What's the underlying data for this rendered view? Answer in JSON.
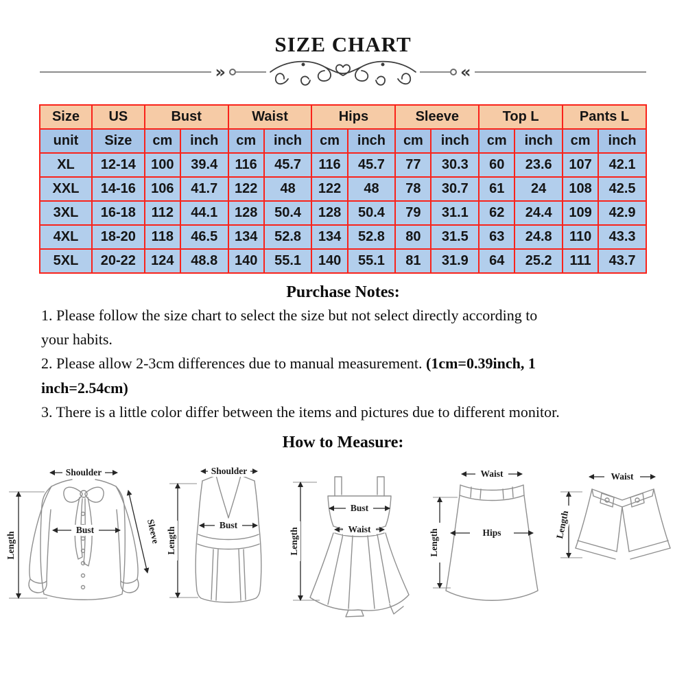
{
  "page": {
    "title": "SIZE CHART",
    "notes_heading": "Purchase Notes:",
    "measure_heading": "How to Measure:"
  },
  "divider": {
    "left_chevrons": "»",
    "right_chevrons": "«"
  },
  "size_table": {
    "border_color": "#f9221a",
    "header_bg": "#f6cba6",
    "unit_row_bg": "#a7c5e8",
    "data_row_bg": "#b2ceec",
    "header_row1": [
      {
        "label": "Size",
        "span": 1
      },
      {
        "label": "US",
        "span": 1
      },
      {
        "label": "Bust",
        "span": 2
      },
      {
        "label": "Waist",
        "span": 2
      },
      {
        "label": "Hips",
        "span": 2
      },
      {
        "label": "Sleeve",
        "span": 2
      },
      {
        "label": "Top L",
        "span": 2
      },
      {
        "label": "Pants L",
        "span": 2
      }
    ],
    "header_row2": [
      "unit",
      "Size",
      "cm",
      "inch",
      "cm",
      "inch",
      "cm",
      "inch",
      "cm",
      "inch",
      "cm",
      "inch",
      "cm",
      "inch"
    ],
    "rows": [
      [
        "XL",
        "12-14",
        "100",
        "39.4",
        "116",
        "45.7",
        "116",
        "45.7",
        "77",
        "30.3",
        "60",
        "23.6",
        "107",
        "42.1"
      ],
      [
        "XXL",
        "14-16",
        "106",
        "41.7",
        "122",
        "48",
        "122",
        "48",
        "78",
        "30.7",
        "61",
        "24",
        "108",
        "42.5"
      ],
      [
        "3XL",
        "16-18",
        "112",
        "44.1",
        "128",
        "50.4",
        "128",
        "50.4",
        "79",
        "31.1",
        "62",
        "24.4",
        "109",
        "42.9"
      ],
      [
        "4XL",
        "18-20",
        "118",
        "46.5",
        "134",
        "52.8",
        "134",
        "52.8",
        "80",
        "31.5",
        "63",
        "24.8",
        "110",
        "43.3"
      ],
      [
        "5XL",
        "20-22",
        "124",
        "48.8",
        "140",
        "55.1",
        "140",
        "55.1",
        "81",
        "31.9",
        "64",
        "25.2",
        "111",
        "43.7"
      ]
    ]
  },
  "notes": {
    "items": [
      {
        "text": "1. Please follow the size chart to select the size but not select directly according to\nyour habits."
      },
      {
        "text": "2. Please allow 2-3cm differences due to manual measurement. ",
        "bold": "(1cm=0.39inch, 1\ninch=2.54cm)"
      },
      {
        "text": "3. There is a little color differ between the items and pictures due to different monitor."
      }
    ]
  },
  "figures": {
    "blouse": {
      "shoulder": "Shoulder",
      "bust": "Bust",
      "length": "Length",
      "sleeve": "Sleeve"
    },
    "vest": {
      "shoulder": "Shoulder",
      "bust": "Bust",
      "length": "Length"
    },
    "dress": {
      "bust": "Bust",
      "waist": "Waist",
      "length": "Length"
    },
    "skirt": {
      "waist": "Waist",
      "hips": "Hips",
      "length": "Length"
    },
    "shorts": {
      "waist": "Waist",
      "length": "Length"
    }
  }
}
